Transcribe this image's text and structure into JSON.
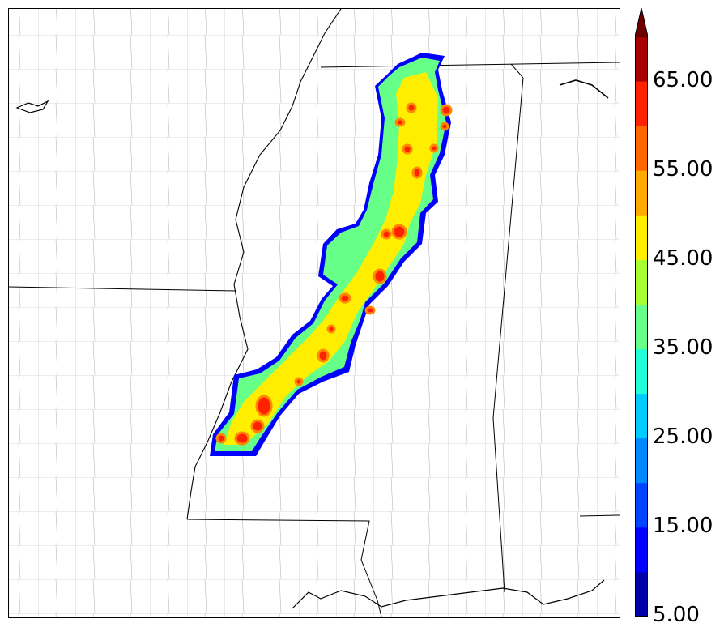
{
  "colorbar": {
    "labels": [
      "5.00",
      "15.00",
      "25.00",
      "35.00",
      "45.00",
      "55.00",
      "65.00"
    ],
    "levels": [
      5,
      10,
      15,
      20,
      25,
      30,
      35,
      40,
      45,
      50,
      55,
      60,
      65,
      70
    ],
    "extend": "max",
    "colors": [
      "#0000a8",
      "#0000ff",
      "#0044ff",
      "#0088ff",
      "#00ccff",
      "#22ffd8",
      "#66ff88",
      "#aaff33",
      "#ffee00",
      "#ffaa00",
      "#ff6600",
      "#ff2200",
      "#a80000"
    ],
    "extend_color": "#6e0000"
  },
  "map": {
    "region": "Mississippi / Louisiana / Arkansas / Alabama",
    "features": [
      "state borders",
      "county borders",
      "coastline",
      "Mississippi river"
    ],
    "field_colors": {
      "low": "#0000ff",
      "mid": "#66ff88",
      "high": "#ffee00",
      "peak": "#ff2200"
    }
  }
}
